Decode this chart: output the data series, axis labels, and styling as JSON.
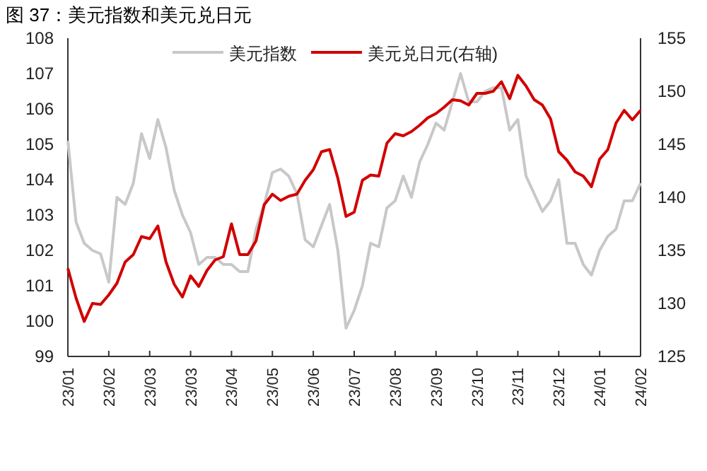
{
  "chart_data": {
    "type": "line",
    "title": "图 37：美元指数和美元兑日元",
    "categories": [
      "23/01",
      null,
      null,
      null,
      null,
      "23/02",
      null,
      null,
      null,
      null,
      "23/03",
      null,
      null,
      null,
      null,
      "23/03",
      null,
      null,
      null,
      null,
      "23/04",
      null,
      null,
      null,
      null,
      "23/05",
      null,
      null,
      null,
      null,
      "23/06",
      null,
      null,
      null,
      null,
      "23/07",
      null,
      null,
      null,
      null,
      "23/08",
      null,
      null,
      null,
      null,
      "23/09",
      null,
      null,
      null,
      null,
      "23/10",
      null,
      null,
      null,
      null,
      "23/11",
      null,
      null,
      null,
      null,
      "23/12",
      null,
      null,
      null,
      null,
      "24/01",
      null,
      null,
      null,
      null,
      "24/02"
    ],
    "ylim": [
      99,
      108
    ],
    "yticks": [
      99,
      100,
      101,
      102,
      103,
      104,
      105,
      106,
      107,
      108
    ],
    "y2lim": [
      125,
      155
    ],
    "y2ticks": [
      125,
      130,
      135,
      140,
      145,
      150,
      155
    ],
    "legend": "top",
    "line_style": "solid",
    "series": [
      {
        "name": "美元指数",
        "color": "#c8c8c8",
        "values": [
          105.1,
          102.8,
          102.2,
          102.0,
          101.9,
          101.1,
          103.5,
          103.3,
          103.9,
          105.3,
          104.6,
          105.7,
          104.9,
          103.7,
          103.0,
          102.5,
          101.6,
          101.8,
          101.8,
          101.6,
          101.6,
          101.4,
          101.4,
          102.6,
          103.3,
          104.2,
          104.3,
          104.1,
          103.6,
          102.3,
          102.1,
          102.7,
          103.3,
          102.0,
          99.8,
          100.3,
          101.0,
          102.2,
          102.1,
          103.2,
          103.4,
          104.1,
          103.5,
          104.5,
          105.0,
          105.6,
          105.4,
          106.2,
          107.0,
          106.2,
          106.2,
          106.5,
          106.6,
          106.6,
          105.4,
          105.7,
          104.1,
          103.6,
          103.1,
          103.4,
          104.0,
          102.2,
          102.2,
          101.6,
          101.3,
          102.0,
          102.4,
          102.6,
          103.4,
          103.4,
          103.9
        ]
      },
      {
        "name": "美元兑日元(右轴)",
        "color": "#d10000",
        "axis": "y2",
        "values": [
          133.3,
          130.5,
          128.3,
          130.0,
          129.9,
          130.8,
          131.9,
          133.9,
          134.6,
          136.3,
          136.1,
          137.3,
          133.9,
          131.8,
          130.6,
          132.6,
          131.6,
          133.1,
          134.1,
          134.4,
          137.5,
          134.6,
          134.6,
          135.9,
          139.3,
          140.3,
          139.7,
          140.1,
          140.3,
          141.6,
          142.6,
          144.3,
          144.5,
          141.8,
          138.2,
          138.6,
          141.6,
          142.1,
          142.0,
          145.1,
          146.0,
          145.8,
          146.2,
          146.8,
          147.5,
          147.9,
          148.5,
          149.2,
          149.1,
          148.7,
          149.8,
          149.8,
          150.0,
          150.9,
          149.3,
          151.5,
          150.5,
          149.2,
          148.7,
          147.4,
          144.3,
          143.5,
          142.4,
          142.0,
          141.0,
          143.6,
          144.5,
          147.0,
          148.2,
          147.3,
          148.2
        ]
      }
    ]
  }
}
